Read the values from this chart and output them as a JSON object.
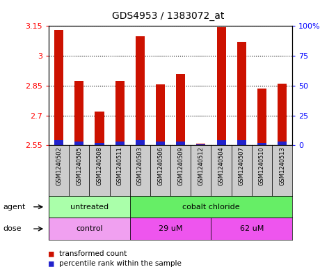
{
  "title": "GDS4953 / 1383072_at",
  "samples": [
    "GSM1240502",
    "GSM1240505",
    "GSM1240508",
    "GSM1240511",
    "GSM1240503",
    "GSM1240506",
    "GSM1240509",
    "GSM1240512",
    "GSM1240504",
    "GSM1240507",
    "GSM1240510",
    "GSM1240513"
  ],
  "transformed_count": [
    3.13,
    2.875,
    2.72,
    2.875,
    3.1,
    2.855,
    2.91,
    2.557,
    3.145,
    3.07,
    2.835,
    2.86
  ],
  "percentile_rank": [
    4,
    3,
    2,
    3,
    4,
    3,
    3,
    1,
    4,
    4,
    2,
    3
  ],
  "ymin": 2.55,
  "ymax": 3.15,
  "yticks": [
    2.55,
    2.7,
    2.85,
    3.0,
    3.15
  ],
  "ytick_labels": [
    "2.55",
    "2.7",
    "2.85",
    "3",
    "3.15"
  ],
  "right_yticks": [
    0,
    25,
    50,
    75,
    100
  ],
  "right_ytick_labels": [
    "0",
    "25",
    "50",
    "75",
    "100%"
  ],
  "bar_color": "#cc1100",
  "blue_color": "#2222cc",
  "grid_color": "#000000",
  "agent_groups": [
    {
      "label": "untreated",
      "start": 0,
      "end": 4,
      "color": "#aaffaa"
    },
    {
      "label": "cobalt chloride",
      "start": 4,
      "end": 12,
      "color": "#66ee66"
    }
  ],
  "dose_groups": [
    {
      "label": "control",
      "start": 0,
      "end": 4,
      "color": "#f0a0f0"
    },
    {
      "label": "29 uM",
      "start": 4,
      "end": 8,
      "color": "#ee55ee"
    },
    {
      "label": "62 uM",
      "start": 8,
      "end": 12,
      "color": "#ee55ee"
    }
  ],
  "sample_bg": "#cccccc",
  "plot_bg": "#ffffff",
  "bar_width": 0.45,
  "figwidth": 4.83,
  "figheight": 3.93,
  "dpi": 100
}
